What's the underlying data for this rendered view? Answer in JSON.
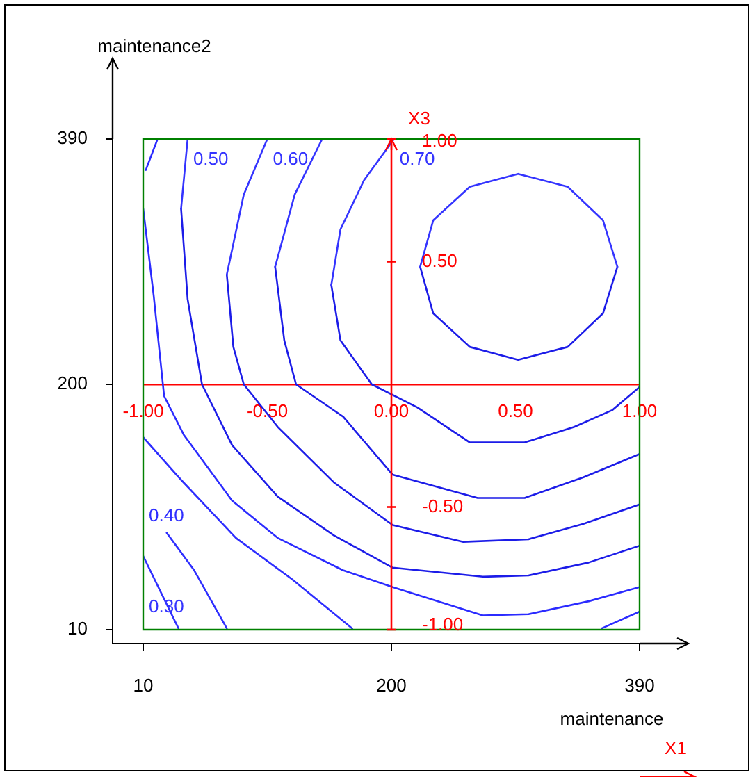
{
  "chart_data": {
    "type": "line",
    "xlabel": "maintenance",
    "ylabel": "maintenance2",
    "x2label": "X1",
    "y2label": "X3",
    "xlim": [
      10,
      390
    ],
    "xticks": [
      10,
      200,
      390
    ],
    "ylim": [
      10,
      390
    ],
    "yticks": [
      10,
      200,
      390
    ],
    "x2lim": [
      -1,
      1
    ],
    "x2ticks": [
      {
        "value": -1,
        "label": "-1.00"
      },
      {
        "value": -0.5,
        "label": "-0.50"
      },
      {
        "value": 0,
        "label": "0.00"
      },
      {
        "value": 0.5,
        "label": "0.50"
      },
      {
        "value": 1,
        "label": "1.00"
      }
    ],
    "y2lim": [
      -1,
      1
    ],
    "y2ticks": [
      {
        "value": -1,
        "label": "-1.00"
      },
      {
        "value": -0.5,
        "label": "-0.50"
      },
      {
        "value": 0.5,
        "label": "0.50"
      },
      {
        "value": 1,
        "label": "1.00"
      }
    ],
    "legend": false,
    "marker": "none",
    "line_style": "solid",
    "series": [
      {
        "color": "#3434ff",
        "x": [
          222,
          232,
          260,
          297,
          335,
          362,
          373
        ],
        "values": [
          291,
          327,
          353,
          363,
          353,
          327,
          291
        ]
      },
      {
        "color": "#1c1ce8",
        "x": [
          222,
          232,
          260,
          297,
          335,
          362,
          373
        ],
        "values": [
          291,
          255,
          229,
          219,
          229,
          255,
          291
        ]
      },
      {
        "name": "0.70",
        "color": "#3434ff",
        "x": [
          154,
          161,
          179,
          202
        ],
        "values": [
          277,
          320,
          358,
          390
        ]
      },
      {
        "color": "#1c1ce8",
        "x": [
          154,
          161,
          185,
          220,
          260,
          302,
          340,
          369,
          390
        ],
        "values": [
          277,
          234,
          200,
          182,
          155,
          155,
          167,
          180,
          198
        ]
      },
      {
        "color": "#3434ff",
        "x": [
          111,
          126,
          147
        ],
        "values": [
          291,
          347,
          390
        ]
      },
      {
        "color": "#1c1ce8",
        "x": [
          111,
          118,
          127,
          163,
          201,
          266,
          302,
          347,
          390
        ],
        "values": [
          291,
          234,
          200,
          175,
          130,
          112,
          112,
          128,
          146
        ]
      },
      {
        "name": "0.60",
        "color": "#3434ff",
        "x": [
          74,
          87,
          105
        ],
        "values": [
          285,
          347,
          390
        ]
      },
      {
        "color": "#1c1ce8",
        "x": [
          74,
          79,
          87,
          113,
          156,
          201,
          255,
          305,
          347,
          390
        ],
        "values": [
          285,
          229,
          200,
          167,
          124,
          91,
          78,
          80,
          92,
          107
        ]
      },
      {
        "name": "0.50",
        "color": "#3434ff",
        "x": [
          39,
          44
        ],
        "values": [
          336,
          390
        ]
      },
      {
        "color": "#1c1ce8",
        "x": [
          39,
          44,
          55,
          78,
          113,
          156,
          201,
          270,
          305,
          351,
          390
        ],
        "values": [
          336,
          266,
          200,
          153,
          113,
          83,
          58,
          51,
          52,
          62,
          75
        ]
      },
      {
        "color": "#2a2aff",
        "x": [
          12,
          21
        ],
        "values": [
          366,
          390
        ]
      },
      {
        "color": "#2b2bff",
        "x": [
          10,
          18,
          26,
          41,
          78,
          113,
          163,
          201,
          270,
          305,
          351,
          390
        ],
        "values": [
          336,
          269,
          191,
          161,
          110,
          81,
          56,
          43,
          21,
          22,
          32,
          43
        ]
      },
      {
        "color": "#2c2cff",
        "x": [
          361,
          390
        ],
        "values": [
          11,
          24
        ]
      },
      {
        "color": "#2d2dff",
        "x": [
          10,
          39,
          81,
          124,
          170
        ],
        "values": [
          159,
          126,
          81,
          49,
          11
        ]
      },
      {
        "name": "0.40",
        "color": "#2e2eff",
        "x": [
          28,
          49,
          74
        ],
        "values": [
          85,
          56,
          11
        ]
      },
      {
        "color": "#2f2fff",
        "x": [
          10,
          37
        ],
        "values": [
          67,
          11
        ]
      }
    ],
    "annotations": [
      "0.30"
    ]
  }
}
